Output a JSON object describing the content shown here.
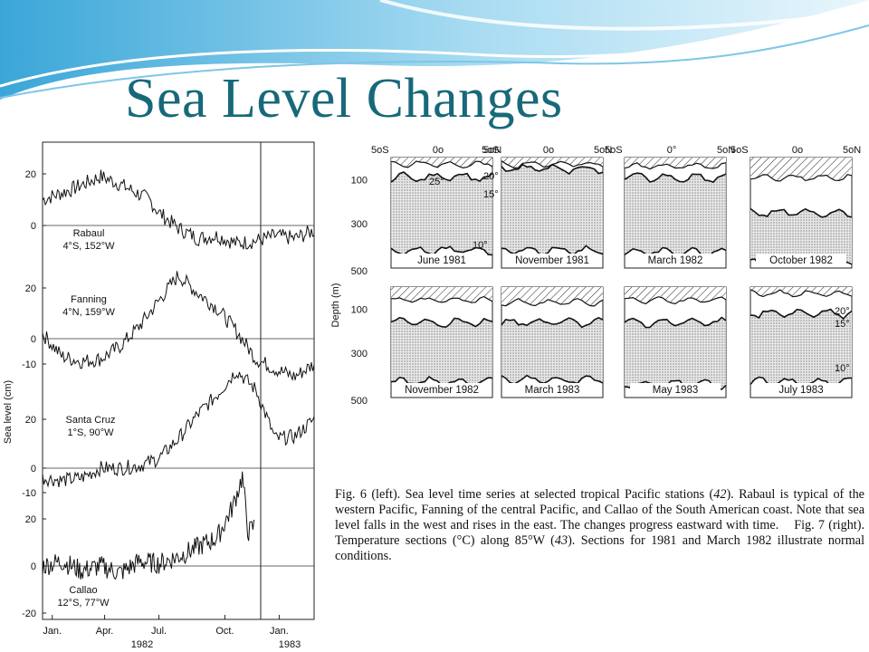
{
  "slide": {
    "title": "Sea Level Changes",
    "colors": {
      "title": "#17697a",
      "wave_dark": "#2f9bd0",
      "wave_light": "#bfe4f5"
    }
  },
  "caption": {
    "fig6_label": "Fig. 6 (left).",
    "fig6_text_a": " Sea level time series at selected tropical Pacific stations (",
    "fig6_ref": "42",
    "fig6_text_b": "). Rabaul is typical of the western Pacific, Fanning of the central Pacific, and Callao of the South American coast. Note that sea level falls in the west and rises in the east. The changes progress eastward with time.",
    "fig7_label": "Fig. 7 (right).",
    "fig7_text_a": " Temperature sections (°C) along 85°W (",
    "fig7_ref": "43",
    "fig7_text_b": "). Sections for 1981 and March 1982 illustrate normal conditions."
  },
  "chart_data": [
    {
      "type": "line",
      "ylabel": "Sea level (cm)",
      "x_ticks": [
        "Jan.",
        "Apr.",
        "Jul.",
        "Oct.",
        "Jan."
      ],
      "x_year_labels": [
        "1982",
        "1983"
      ],
      "panels": [
        {
          "name": "Rabaul",
          "location": "4°S, 152°W",
          "y_ticks": [
            "20",
            "0"
          ],
          "points": [
            [
              0,
              10
            ],
            [
              1.5,
              14
            ],
            [
              3,
              19
            ],
            [
              4,
              16
            ],
            [
              5.5,
              10
            ],
            [
              6,
              5
            ],
            [
              7,
              -1
            ],
            [
              8,
              -5
            ],
            [
              9,
              -4
            ],
            [
              10,
              -7
            ],
            [
              11,
              -6
            ],
            [
              12,
              -4
            ],
            [
              13,
              -5
            ],
            [
              14,
              -2
            ]
          ]
        },
        {
          "name": "Fanning",
          "location": "4°N, 159°W",
          "y_ticks": [
            "20",
            "0",
            "-10"
          ],
          "points": [
            [
              0,
              2
            ],
            [
              1,
              -7
            ],
            [
              2,
              -9
            ],
            [
              3,
              -8
            ],
            [
              4,
              -3
            ],
            [
              5,
              5
            ],
            [
              6,
              15
            ],
            [
              7,
              25
            ],
            [
              8,
              18
            ],
            [
              9,
              12
            ],
            [
              10,
              3
            ],
            [
              11,
              -8
            ],
            [
              12,
              -12
            ],
            [
              13,
              -15
            ],
            [
              14,
              -10
            ]
          ]
        },
        {
          "name": "Santa Cruz",
          "location": "1°S, 90°W",
          "y_ticks": [
            "20",
            "0",
            "-10"
          ],
          "points": [
            [
              0,
              -4
            ],
            [
              1,
              -5
            ],
            [
              2,
              -4
            ],
            [
              3,
              0
            ],
            [
              4,
              0
            ],
            [
              5,
              1
            ],
            [
              6,
              4
            ],
            [
              7,
              12
            ],
            [
              8,
              22
            ],
            [
              9,
              30
            ],
            [
              10,
              40
            ],
            [
              11,
              32
            ],
            [
              12,
              12
            ],
            [
              13,
              13
            ],
            [
              14,
              20
            ]
          ]
        },
        {
          "name": "Callao",
          "location": "12°S, 77°W",
          "y_ticks": [
            "20",
            "0",
            "-20"
          ],
          "points": [
            [
              0,
              0
            ],
            [
              1,
              2
            ],
            [
              2,
              -2
            ],
            [
              3,
              0
            ],
            [
              4,
              -3
            ],
            [
              5,
              2
            ],
            [
              6,
              1
            ],
            [
              7,
              4
            ],
            [
              8,
              8
            ],
            [
              9,
              12
            ],
            [
              9.8,
              25
            ],
            [
              10.3,
              38
            ],
            [
              10.6,
              14
            ],
            [
              10.9,
              17
            ]
          ]
        }
      ]
    },
    {
      "type": "heatmap",
      "ylabel": "Depth (m)",
      "lat_ticks": [
        "5oS",
        "0o",
        "5oN"
      ],
      "lat_ticks_alt": [
        "5oS",
        "0°",
        "5oN"
      ],
      "depth_ticks": [
        "100",
        "300",
        "500"
      ],
      "isotherm_labels": [
        "20°",
        "25°",
        "15°",
        "10°"
      ],
      "sections": [
        {
          "label": "June 1981",
          "d20": 30,
          "d15": 90,
          "d10": 420
        },
        {
          "label": "November 1981",
          "d20": 30,
          "d15": 50,
          "d10": 420
        },
        {
          "label": "March 1982",
          "d20": 40,
          "d15": 90,
          "d10": 430
        },
        {
          "label": "October 1982",
          "d20": 90,
          "d15": 250,
          "d10": 470
        },
        {
          "label": "November 1982",
          "d20": 60,
          "d15": 160,
          "d10": 430
        },
        {
          "label": "March 1983",
          "d20": 70,
          "d15": 160,
          "d10": 420
        },
        {
          "label": "May 1983",
          "d20": 60,
          "d15": 160,
          "d10": 440
        },
        {
          "label": "July 1983",
          "d20": 30,
          "d15": 120,
          "d10": 430
        }
      ]
    }
  ]
}
